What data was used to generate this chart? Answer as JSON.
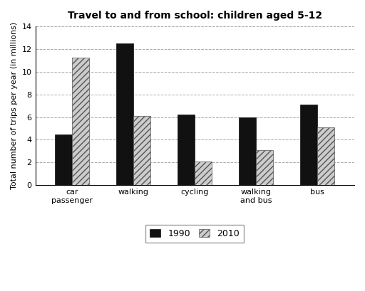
{
  "title": "Travel to and from school: children aged 5-12",
  "ylabel": "Total number of trips per year (in millions)",
  "categories": [
    "car\npassenger",
    "walking",
    "cycling",
    "walking\nand bus",
    "bus"
  ],
  "values_1990": [
    4.5,
    12.5,
    6.25,
    6.0,
    7.1
  ],
  "values_2010": [
    11.25,
    6.1,
    2.1,
    3.1,
    5.1
  ],
  "color_1990": "#111111",
  "color_2010_face": "#cccccc",
  "hatch_2010": "////",
  "ylim": [
    0,
    14
  ],
  "yticks": [
    0,
    2,
    4,
    6,
    8,
    10,
    12,
    14
  ],
  "legend_labels": [
    "1990",
    "2010"
  ],
  "bar_width": 0.28,
  "grid_color": "#aaaaaa",
  "background_color": "#ffffff",
  "title_fontsize": 10,
  "axis_fontsize": 8,
  "tick_fontsize": 8
}
